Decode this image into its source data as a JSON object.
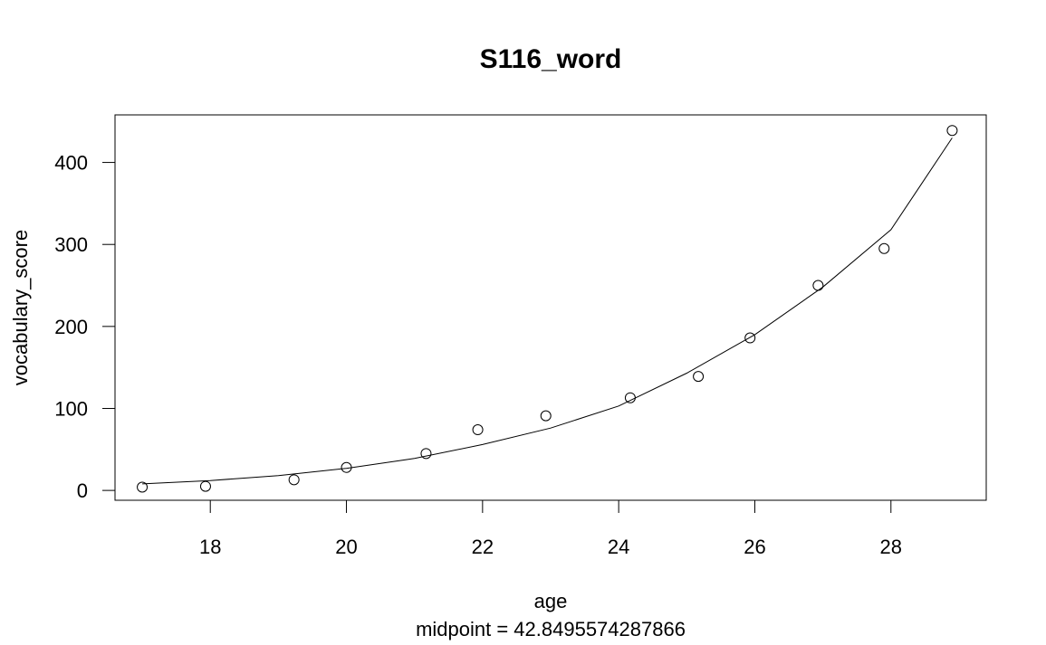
{
  "chart_data": {
    "type": "scatter",
    "title": "S116_word",
    "xlabel": "age",
    "subtitle": "midpoint = 42.8495574287866",
    "ylabel": "vocabulary_score",
    "xlim": [
      16.6,
      29.4
    ],
    "ylim": [
      -12,
      458
    ],
    "xticks": [
      18,
      20,
      22,
      24,
      26,
      28
    ],
    "yticks": [
      0,
      100,
      200,
      300,
      400
    ],
    "series": [
      {
        "marker": "open-circle",
        "x": [
          17.0,
          17.93,
          19.23,
          20.0,
          21.17,
          21.93,
          22.93,
          24.17,
          25.17,
          25.93,
          26.93,
          27.9,
          28.9
        ],
        "y": [
          4,
          5,
          13,
          28,
          45,
          74,
          91,
          113,
          139,
          186,
          250,
          295,
          439
        ]
      },
      {
        "style": "line",
        "x": [
          17.0,
          18.0,
          19.0,
          20.0,
          21.0,
          22.0,
          23.0,
          24.0,
          25.0,
          26.0,
          27.0,
          28.0,
          28.9
        ],
        "y": [
          8,
          12,
          18,
          27,
          39,
          56,
          76,
          103,
          143,
          190,
          248,
          318,
          430
        ]
      }
    ],
    "grid": false,
    "frame": true
  }
}
